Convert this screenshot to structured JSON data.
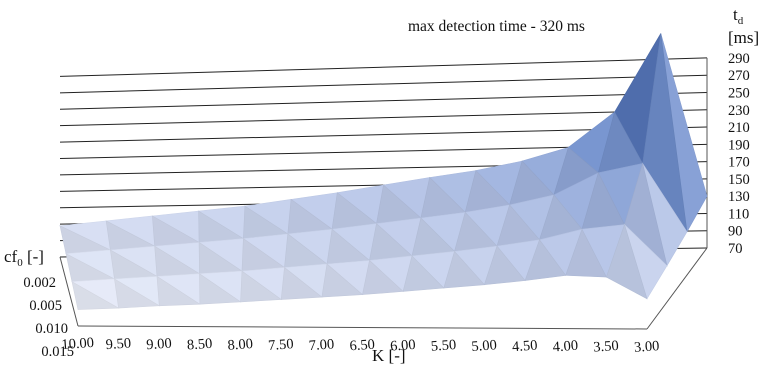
{
  "chart_data": {
    "type": "surface3d",
    "annotation": "max detection time - 320 ms",
    "z_axis": {
      "label": "t",
      "label_subscript": "d",
      "unit": "[ms]",
      "ticks": [
        "290",
        "270",
        "250",
        "230",
        "210",
        "190",
        "170",
        "150",
        "130",
        "110",
        "90",
        "70"
      ],
      "range": [
        70,
        320
      ]
    },
    "x_axis": {
      "label": "K [-]",
      "ticks": [
        "10.00",
        "9.50",
        "9.00",
        "8.50",
        "8.00",
        "7.50",
        "7.00",
        "6.50",
        "6.00",
        "5.50",
        "5.00",
        "4.50",
        "4.00",
        "3.50",
        "3.00"
      ]
    },
    "y_axis": {
      "label": "cf",
      "label_subscript": "0",
      "label_suffix": " [-]",
      "ticks": [
        "0.002",
        "0.005",
        "0.010",
        "0.015"
      ]
    },
    "K": [
      10.0,
      9.5,
      9.0,
      8.5,
      8.0,
      7.5,
      7.0,
      6.5,
      6.0,
      5.5,
      5.0,
      4.5,
      4.0,
      3.5,
      3.0
    ],
    "cf0": [
      0.002,
      0.005,
      0.01,
      0.015
    ],
    "td": [
      [
        108,
        113,
        118,
        123,
        128,
        135,
        142,
        150,
        158,
        165,
        175,
        190,
        230,
        320,
        130
      ],
      [
        102,
        106,
        110,
        114,
        118,
        123,
        128,
        134,
        140,
        146,
        154,
        165,
        190,
        200,
        120
      ],
      [
        96,
        99,
        102,
        105,
        108,
        112,
        116,
        120,
        125,
        130,
        136,
        143,
        155,
        160,
        112
      ],
      [
        90,
        92,
        95,
        97,
        100,
        103,
        106,
        109,
        113,
        117,
        121,
        126,
        132,
        130,
        105
      ]
    ],
    "grid": true,
    "colormap": [
      "#eef1fb",
      "#b8c6e8",
      "#5f82c6",
      "#1c2e5a"
    ]
  }
}
